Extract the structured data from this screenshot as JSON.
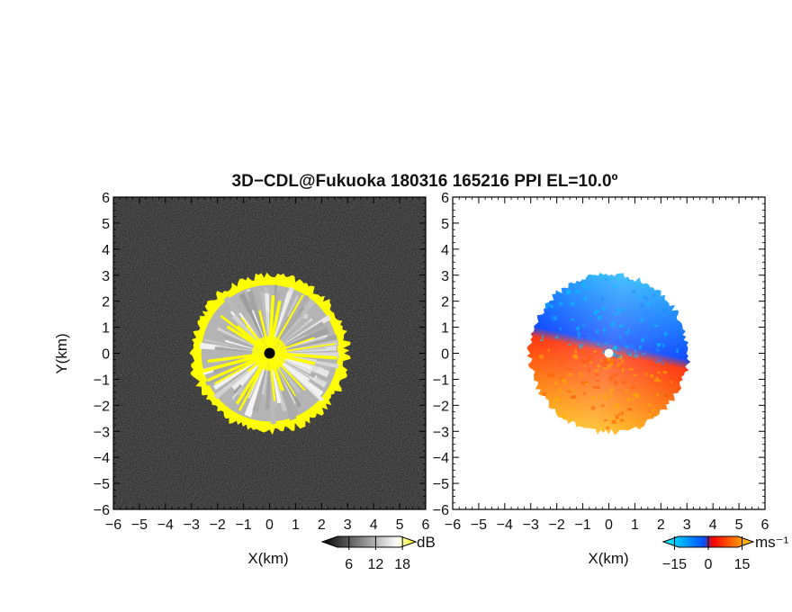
{
  "title": "3D−CDL@Fukuoka 180316 165216 PPI EL=10.0º",
  "chart_data": [
    {
      "type": "heatmap",
      "panel": "reflectivity",
      "xlabel": "X(km)",
      "ylabel": "Y(km)",
      "xlim": [
        -6,
        6
      ],
      "ylim": [
        -6,
        6
      ],
      "xticks": [
        "−6",
        "−5",
        "−4",
        "−3",
        "−2",
        "−1",
        "0",
        "1",
        "2",
        "3",
        "4",
        "5",
        "6"
      ],
      "yticks": [
        "6",
        "5",
        "4",
        "3",
        "2",
        "1",
        "0",
        "−1",
        "−2",
        "−3",
        "−4",
        "−5",
        "−6"
      ],
      "colorbar": {
        "unit": "dB",
        "ticks": [
          "6",
          "12",
          "18"
        ],
        "range": [
          0,
          21
        ],
        "colors": [
          "#000000",
          "#ffffff",
          "#ffff00"
        ]
      },
      "echo_radius_km": 3.05,
      "colors": {
        "background": "#141414",
        "echo": "#b4b4b4",
        "strong": "#ffff00",
        "center": "#000000"
      }
    },
    {
      "type": "heatmap",
      "panel": "doppler_velocity",
      "xlabel": "X(km)",
      "xlim": [
        -6,
        6
      ],
      "ylim": [
        -6,
        6
      ],
      "xticks": [
        "−6",
        "−5",
        "−4",
        "−3",
        "−2",
        "−1",
        "0",
        "1",
        "2",
        "3",
        "4",
        "5",
        "6"
      ],
      "yticks": [
        "6",
        "5",
        "4",
        "3",
        "2",
        "1",
        "0",
        "−1",
        "−2",
        "−3",
        "−4",
        "−5",
        "−6"
      ],
      "colorbar": {
        "unit": "ms⁻¹",
        "ticks": [
          "−15",
          "0",
          "15"
        ],
        "range": [
          -20,
          20
        ],
        "colors": [
          "#00ffff",
          "#0050ff",
          "#ff0000",
          "#ffd700"
        ]
      },
      "echo_radius_km": 3.1,
      "colors": {
        "toward": "#0060ff",
        "toward_light": "#00e6ff",
        "away": "#ff3c00",
        "away_light": "#ffe600"
      }
    }
  ]
}
